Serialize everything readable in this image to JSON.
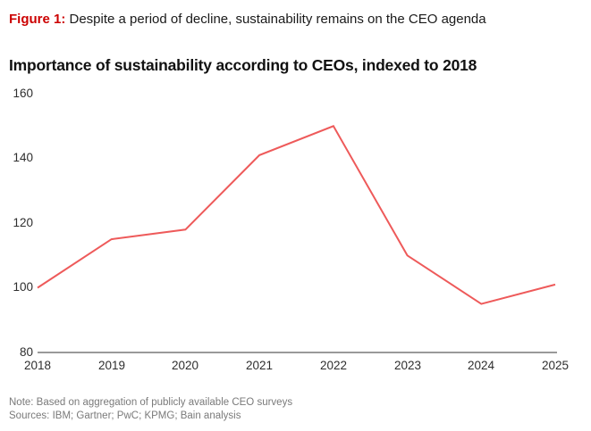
{
  "header": {
    "figure_label": "Figure 1:",
    "figure_caption": " Despite a period of decline, sustainability remains on the CEO agenda"
  },
  "chart_data": {
    "type": "line",
    "title": "Importance of sustainability according to CEOs, indexed to 2018",
    "categories": [
      "2018",
      "2019",
      "2020",
      "2021",
      "2022",
      "2023",
      "2024",
      "2025"
    ],
    "values": [
      100,
      115,
      118,
      141,
      150,
      110,
      95,
      101
    ],
    "yticks": [
      "160",
      "140",
      "120",
      "100",
      "80"
    ],
    "ylim": [
      80,
      160
    ],
    "xlabel": "",
    "ylabel": "",
    "grid": false,
    "legend_position": "none",
    "line_color": "#ee5a5a",
    "baseline_color": "#999999"
  },
  "footer": {
    "note": "Note: Based on aggregation of publicly available CEO surveys",
    "sources": "Sources: IBM; Gartner; PwC; KPMG; Bain analysis"
  },
  "colors": {
    "figure_label_red": "#cc0000",
    "title_text": "#111111",
    "axis_text": "#2e2e2e",
    "footer_text": "#7a7a7a"
  }
}
